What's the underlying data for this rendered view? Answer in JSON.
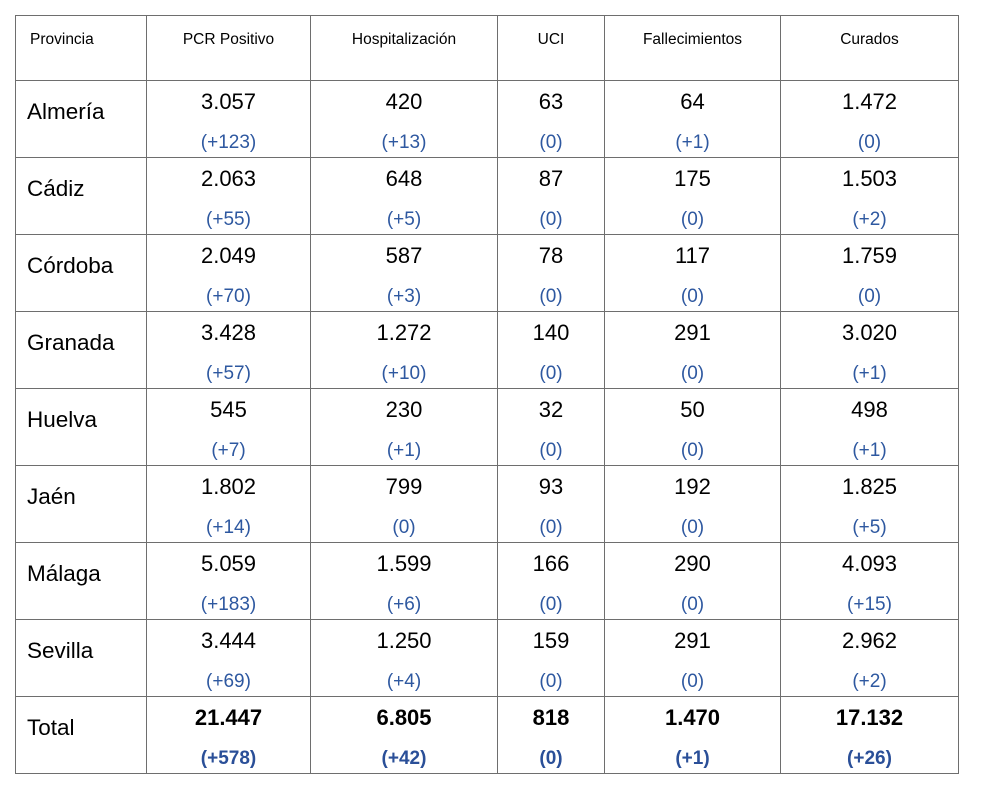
{
  "headers": [
    "Provincia",
    "PCR Positivo",
    "Hospitalización",
    "UCI",
    "Fallecimientos",
    "Curados"
  ],
  "rows": [
    {
      "name": "Almería",
      "cells": [
        {
          "value": "3.057",
          "delta": "(+123)"
        },
        {
          "value": "420",
          "delta": "(+13)"
        },
        {
          "value": "63",
          "delta": "(0)"
        },
        {
          "value": "64",
          "delta": "(+1)"
        },
        {
          "value": "1.472",
          "delta": "(0)"
        }
      ]
    },
    {
      "name": "Cádiz",
      "cells": [
        {
          "value": "2.063",
          "delta": "(+55)"
        },
        {
          "value": "648",
          "delta": "(+5)"
        },
        {
          "value": "87",
          "delta": "(0)"
        },
        {
          "value": "175",
          "delta": "(0)"
        },
        {
          "value": "1.503",
          "delta": "(+2)"
        }
      ]
    },
    {
      "name": "Córdoba",
      "cells": [
        {
          "value": "2.049",
          "delta": "(+70)"
        },
        {
          "value": "587",
          "delta": "(+3)"
        },
        {
          "value": "78",
          "delta": "(0)"
        },
        {
          "value": "117",
          "delta": "(0)"
        },
        {
          "value": "1.759",
          "delta": "(0)"
        }
      ]
    },
    {
      "name": "Granada",
      "cells": [
        {
          "value": "3.428",
          "delta": "(+57)"
        },
        {
          "value": "1.272",
          "delta": "(+10)"
        },
        {
          "value": "140",
          "delta": "(0)"
        },
        {
          "value": "291",
          "delta": "(0)"
        },
        {
          "value": "3.020",
          "delta": "(+1)"
        }
      ]
    },
    {
      "name": "Huelva",
      "cells": [
        {
          "value": "545",
          "delta": "(+7)"
        },
        {
          "value": "230",
          "delta": "(+1)"
        },
        {
          "value": "32",
          "delta": "(0)"
        },
        {
          "value": "50",
          "delta": "(0)"
        },
        {
          "value": "498",
          "delta": "(+1)"
        }
      ]
    },
    {
      "name": "Jaén",
      "cells": [
        {
          "value": "1.802",
          "delta": "(+14)"
        },
        {
          "value": "799",
          "delta": "(0)"
        },
        {
          "value": "93",
          "delta": "(0)"
        },
        {
          "value": "192",
          "delta": "(0)"
        },
        {
          "value": "1.825",
          "delta": "(+5)"
        }
      ]
    },
    {
      "name": "Málaga",
      "cells": [
        {
          "value": "5.059",
          "delta": "(+183)"
        },
        {
          "value": "1.599",
          "delta": "(+6)"
        },
        {
          "value": "166",
          "delta": "(0)"
        },
        {
          "value": "290",
          "delta": "(0)"
        },
        {
          "value": "4.093",
          "delta": "(+15)"
        }
      ]
    },
    {
      "name": "Sevilla",
      "cells": [
        {
          "value": "3.444",
          "delta": "(+69)"
        },
        {
          "value": "1.250",
          "delta": "(+4)"
        },
        {
          "value": "159",
          "delta": "(0)"
        },
        {
          "value": "291",
          "delta": "(0)"
        },
        {
          "value": "2.962",
          "delta": "(+2)"
        }
      ]
    }
  ],
  "total": {
    "name": "Total",
    "cells": [
      {
        "value": "21.447",
        "delta": "(+578)"
      },
      {
        "value": "6.805",
        "delta": "(+42)"
      },
      {
        "value": "818",
        "delta": "(0)"
      },
      {
        "value": "1.470",
        "delta": "(+1)"
      },
      {
        "value": "17.132",
        "delta": "(+26)"
      }
    ]
  },
  "colors": {
    "delta": "#2e58a0",
    "border": "#6e6e6e"
  }
}
